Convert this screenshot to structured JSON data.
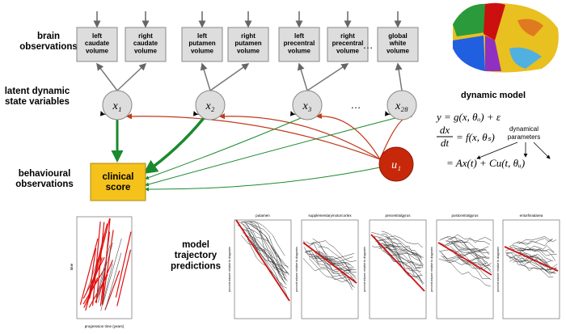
{
  "labels": {
    "brain": "brain observations",
    "latent": "latent dynamic state variables",
    "behavioural": "behavioural observations",
    "predictions": "model trajectory predictions"
  },
  "observations": [
    {
      "label": "left caudate volume"
    },
    {
      "label": "right caudate volume"
    },
    {
      "label": "left putamen volume"
    },
    {
      "label": "right putamen volume"
    },
    {
      "label": "left precentral volume"
    },
    {
      "label": "right precentral volume"
    },
    {
      "label": "global white volume"
    }
  ],
  "ellipsis": "…",
  "nodes": [
    {
      "label": "x₁"
    },
    {
      "label": "x₂"
    },
    {
      "label": "x₃"
    },
    {
      "label": "x₂₈"
    }
  ],
  "input": {
    "label": "u₁"
  },
  "score": {
    "label": "clinical score"
  },
  "model": {
    "title": "dynamic model",
    "eq1": "y = g(x, θₒ) + ε",
    "num": "dx",
    "den": "dt",
    "eq2": "= f(x, θₛ)",
    "eq3": "= Ax(t) + Cu(t, θᵤ)",
    "params": "dynamical parameters"
  },
  "left_plot": {
    "xlabel": "progression time (years)",
    "ylabel": "time"
  },
  "panels": [
    {
      "title": "putamen"
    },
    {
      "title": "supplementarymotorcortex"
    },
    {
      "title": "precentralgyrus"
    },
    {
      "title": "postcentralgyrus"
    },
    {
      "title": "entorhinalarea"
    }
  ],
  "panel_ylabel": "percent volume relative to diagnosis"
}
